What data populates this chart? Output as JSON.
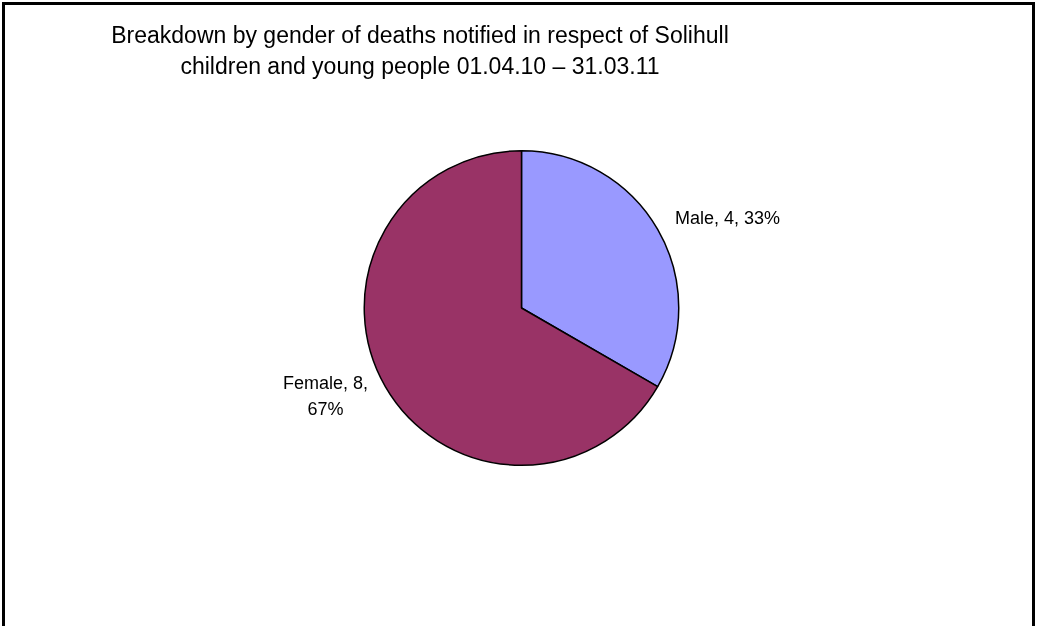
{
  "chart_data": {
    "type": "pie",
    "title": "Breakdown by gender of deaths notified in respect of Solihull children and young people 01.04.10 – 31.03.11",
    "categories": [
      "Male",
      "Female"
    ],
    "values": [
      4,
      8
    ],
    "colors": [
      "#9999ff",
      "#993366"
    ],
    "value_labels": [
      "4, 33%",
      "8, 67%"
    ],
    "legend": false
  }
}
